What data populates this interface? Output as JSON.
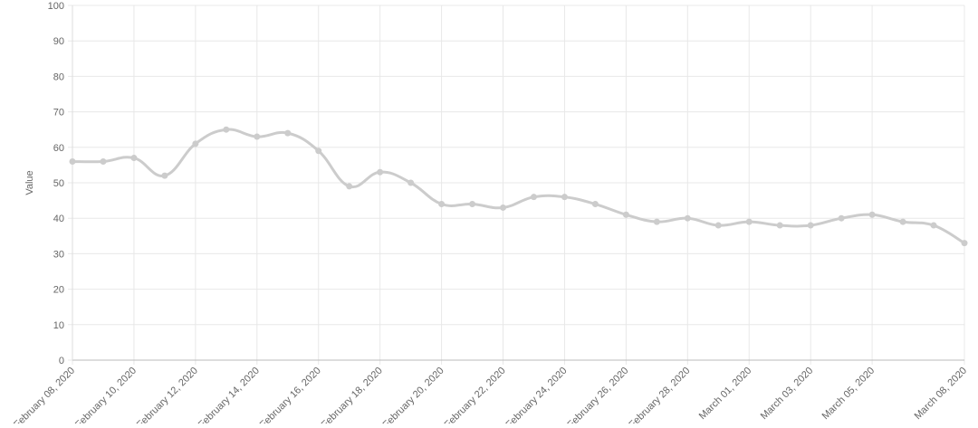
{
  "chart_data": {
    "type": "line",
    "y_label": "Value",
    "x": [
      "2020-02-08",
      "2020-02-09",
      "2020-02-10",
      "2020-02-11",
      "2020-02-12",
      "2020-02-13",
      "2020-02-14",
      "2020-02-15",
      "2020-02-16",
      "2020-02-17",
      "2020-02-18",
      "2020-02-19",
      "2020-02-20",
      "2020-02-21",
      "2020-02-22",
      "2020-02-23",
      "2020-02-24",
      "2020-02-25",
      "2020-02-26",
      "2020-02-27",
      "2020-02-28",
      "2020-02-29",
      "2020-03-01",
      "2020-03-02",
      "2020-03-03",
      "2020-03-04",
      "2020-03-05",
      "2020-03-06",
      "2020-03-07",
      "2020-03-08"
    ],
    "values": [
      56,
      56,
      57,
      52,
      61,
      65,
      63,
      64,
      59,
      49,
      53,
      50,
      44,
      44,
      43,
      46,
      46,
      44,
      41,
      39,
      40,
      38,
      39,
      38,
      38,
      40,
      41,
      39,
      38,
      33
    ],
    "color": "#cccccc",
    "xlim": [
      "2020-02-08",
      "2020-03-08"
    ],
    "xticks": [
      {
        "value": "2020-02-08",
        "label": "February 08, 2020"
      },
      {
        "value": "2020-02-10",
        "label": "February 10, 2020"
      },
      {
        "value": "2020-02-12",
        "label": "February 12, 2020"
      },
      {
        "value": "2020-02-14",
        "label": "February 14, 2020"
      },
      {
        "value": "2020-02-16",
        "label": "February 16, 2020"
      },
      {
        "value": "2020-02-18",
        "label": "February 18, 2020"
      },
      {
        "value": "2020-02-20",
        "label": "February 20, 2020"
      },
      {
        "value": "2020-02-22",
        "label": "February 22, 2020"
      },
      {
        "value": "2020-02-24",
        "label": "February 24, 2020"
      },
      {
        "value": "2020-02-26",
        "label": "February 26, 2020"
      },
      {
        "value": "2020-02-28",
        "label": "February 28, 2020"
      },
      {
        "value": "2020-03-01",
        "label": "March 01, 2020"
      },
      {
        "value": "2020-03-03",
        "label": "March 03, 2020"
      },
      {
        "value": "2020-03-05",
        "label": "March 05, 2020"
      },
      {
        "value": "2020-03-08",
        "label": "March 08, 2020"
      }
    ],
    "ylim": [
      0,
      100
    ],
    "yticks": [
      0,
      10,
      20,
      30,
      40,
      50,
      60,
      70,
      80,
      90,
      100
    ],
    "grid": true
  }
}
